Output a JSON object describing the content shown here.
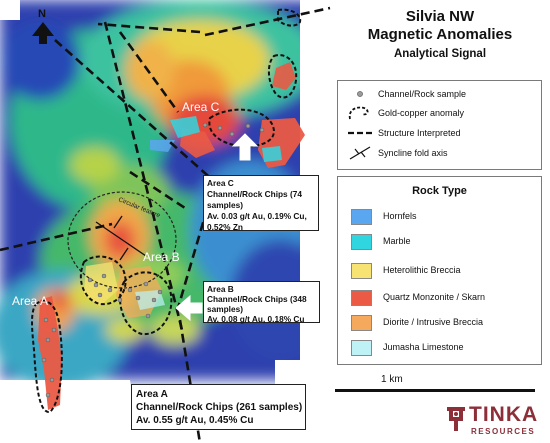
{
  "title": {
    "line1": "Silvia NW",
    "line2": "Magnetic Anomalies",
    "line3": "Analytical Signal"
  },
  "north_label": "N",
  "legend_symbols": [
    {
      "label": "Channel/Rock sample",
      "icon": "sample-dot-icon"
    },
    {
      "label": "Gold-copper anomaly",
      "icon": "dashed-outline-icon"
    },
    {
      "label": "Structure Interpreted",
      "icon": "dashed-line-icon"
    },
    {
      "label": "Syncline fold axis",
      "icon": "syncline-icon"
    }
  ],
  "rock_type": {
    "title": "Rock Type",
    "items": [
      {
        "label": "Hornfels",
        "color": "#5aa7ef"
      },
      {
        "label": "Marble",
        "color": "#2fd6e0"
      },
      {
        "label": "Heterolithic Breccia",
        "color": "#f7e274"
      },
      {
        "label": "Quartz Monzonite / Skarn",
        "color": "#ea5a44"
      },
      {
        "label": "Diorite / Intrusive Breccia",
        "color": "#f4a95c"
      },
      {
        "label": "Jumasha Limestone",
        "color": "#bff2f7"
      }
    ]
  },
  "areas": {
    "c": "Area C",
    "b": "Area B",
    "a": "Area A"
  },
  "feature_label": "Circular feature",
  "annotations": {
    "area_c": {
      "l1": "Area C",
      "l2": "Channel/Rock Chips (74",
      "l3": "samples)",
      "l4": "Av. 0.03 g/t Au, 0.19% Cu,",
      "l5": "0.52% Zn"
    },
    "area_b": {
      "l1": "Area B",
      "l2": "Channel/Rock Chips (348",
      "l3": "samples)",
      "l4": "Av. 0.08 g/t Au, 0.18% Cu"
    },
    "area_a": {
      "l1": "Area A",
      "l2": "Channel/Rock Chips (261 samples)",
      "l3": "Av. 0.55 g/t Au, 0.45% Cu"
    }
  },
  "scale_label": "1 km",
  "logo": {
    "name": "TINKA",
    "sub": "RESOURCES"
  }
}
